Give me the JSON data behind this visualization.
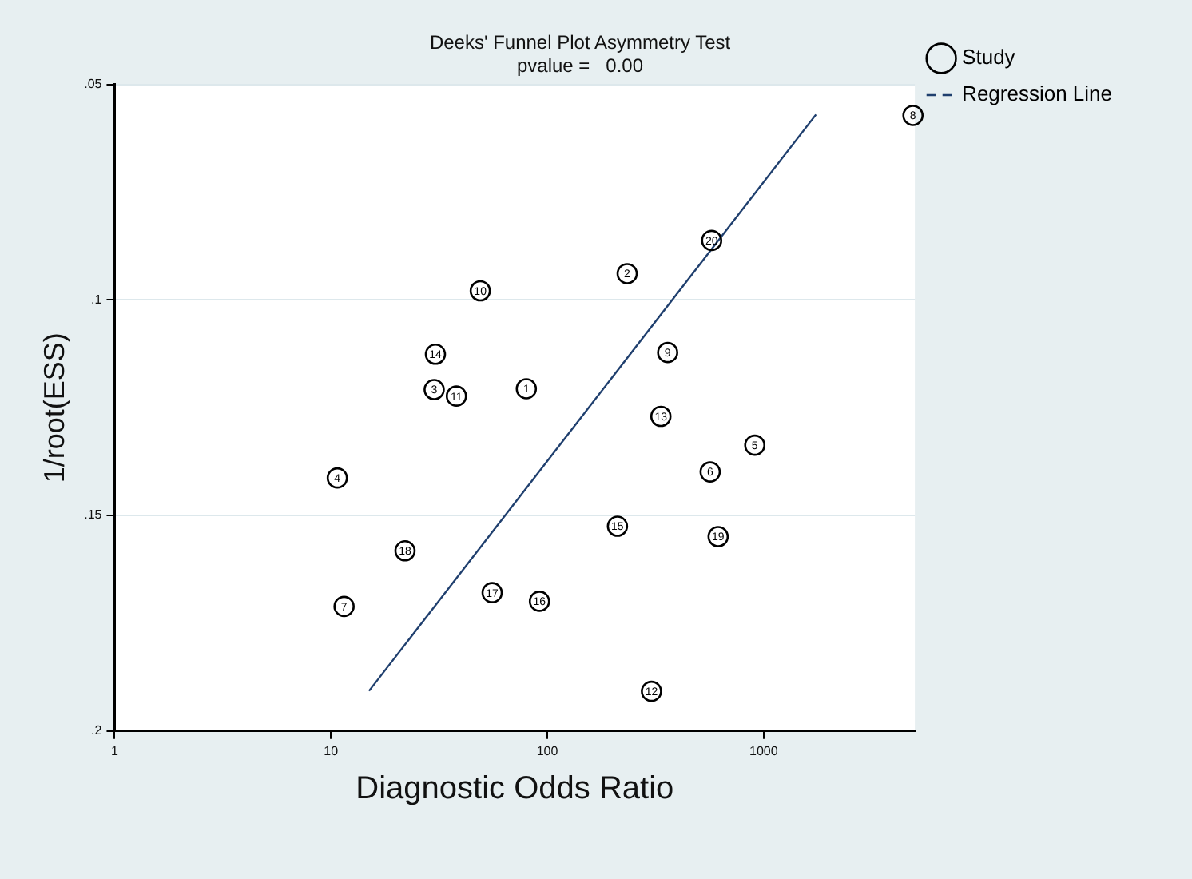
{
  "chart_data": {
    "type": "scatter",
    "title": "Deeks' Funnel Plot Asymmetry Test",
    "subtitle": "pvalue =   0.00",
    "xlabel": "Diagnostic Odds Ratio",
    "ylabel": "1/root(ESS)",
    "log": "x",
    "xlim": [
      1,
      5000
    ],
    "xticks": [
      1,
      10,
      100,
      1000
    ],
    "ylim": [
      0.2,
      0.05
    ],
    "yticks": [
      {
        "value": 0.05,
        "label": ".05"
      },
      {
        "value": 0.1,
        "label": ".1"
      },
      {
        "value": 0.15,
        "label": ".15"
      },
      {
        "value": 0.2,
        "label": ".2"
      }
    ],
    "grid": "y",
    "legend": "top right",
    "marker": "circle",
    "series": [
      {
        "name": "Study",
        "color": "#000000",
        "x": [
          80,
          234,
          30,
          10.7,
          910,
          566,
          11.5,
          4900,
          360,
          49,
          38,
          303,
          335,
          30.4,
          211,
          92,
          55.6,
          22,
          616,
          575
        ],
        "values": [
          0.1206,
          0.0939,
          0.1208,
          0.1413,
          0.1337,
          0.1399,
          0.1711,
          0.0572,
          0.1122,
          0.0979,
          0.1223,
          0.1908,
          0.127,
          0.1126,
          0.1525,
          0.1699,
          0.1679,
          0.1582,
          0.1549,
          0.0862
        ]
      },
      {
        "name": "Regression Line",
        "type": "line",
        "color": "#1f3f6e",
        "line_style": "solid",
        "marker": "none",
        "x": [
          15,
          1745
        ],
        "values": [
          0.1907,
          0.057
        ]
      }
    ],
    "annotations": [
      {
        "text": "1",
        "x": 80,
        "y": 0.1206
      },
      {
        "text": "2",
        "x": 234,
        "y": 0.0939
      },
      {
        "text": "3",
        "x": 30,
        "y": 0.1208
      },
      {
        "text": "4",
        "x": 10.7,
        "y": 0.1413
      },
      {
        "text": "5",
        "x": 910,
        "y": 0.1337
      },
      {
        "text": "6",
        "x": 566,
        "y": 0.1399
      },
      {
        "text": "7",
        "x": 11.5,
        "y": 0.1711
      },
      {
        "text": "8",
        "x": 4900,
        "y": 0.0572
      },
      {
        "text": "9",
        "x": 360,
        "y": 0.1122
      },
      {
        "text": "10",
        "x": 49,
        "y": 0.0979
      },
      {
        "text": "11",
        "x": 38,
        "y": 0.1223
      },
      {
        "text": "12",
        "x": 303,
        "y": 0.1908
      },
      {
        "text": "13",
        "x": 335,
        "y": 0.127
      },
      {
        "text": "14",
        "x": 30.4,
        "y": 0.1126
      },
      {
        "text": "15",
        "x": 211,
        "y": 0.1525
      },
      {
        "text": "16",
        "x": 92,
        "y": 0.1699
      },
      {
        "text": "17",
        "x": 55.6,
        "y": 0.1679
      },
      {
        "text": "18",
        "x": 22,
        "y": 0.1582
      },
      {
        "text": "19",
        "x": 616,
        "y": 0.1549
      },
      {
        "text": "20",
        "x": 575,
        "y": 0.0862
      }
    ]
  }
}
